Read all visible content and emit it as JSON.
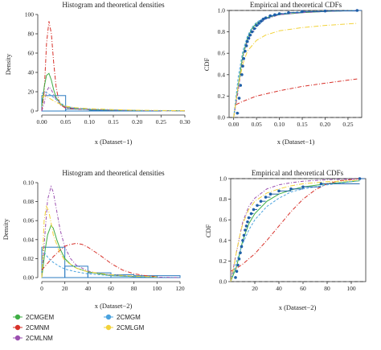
{
  "colors": {
    "2CMGEM": "#3fae45",
    "2CMNM": "#d7312a",
    "2CMLNM": "#9b4fb0",
    "2CMGM": "#4aa3df",
    "2CMLGM": "#f2d23a",
    "histogram": "#2b7bc0",
    "empirical": "#1f5fa8",
    "ref": "#222222"
  },
  "legend": {
    "placement": "bottom-left",
    "items": [
      {
        "name": "2CMGEM",
        "color_key": "2CMGEM"
      },
      {
        "name": "2CMGM",
        "color_key": "2CMGM"
      },
      {
        "name": "2CMNM",
        "color_key": "2CMNM"
      },
      {
        "name": "2CMLGM",
        "color_key": "2CMLGM"
      },
      {
        "name": "2CMLNM",
        "color_key": "2CMLNM"
      }
    ]
  },
  "chart_data": [
    {
      "id": "hist1",
      "type": "histogram_density",
      "title": "Histogram and theoretical densities",
      "xlabel": "x (Dataset−1)",
      "ylabel": "Density",
      "xlim": [
        0,
        0.3
      ],
      "ylim": [
        0,
        100
      ],
      "xticks": [
        "0.00",
        "0.05",
        "0.10",
        "0.15",
        "0.20",
        "0.25",
        "0.30"
      ],
      "yticks": [
        "0",
        "20",
        "40",
        "60",
        "80",
        "100"
      ],
      "bins": [
        {
          "x0": 0.0,
          "x1": 0.05,
          "density": 16
        },
        {
          "x0": 0.05,
          "x1": 0.1,
          "density": 2
        },
        {
          "x0": 0.1,
          "x1": 0.15,
          "density": 0.8
        },
        {
          "x0": 0.15,
          "x1": 0.2,
          "density": 0.5
        },
        {
          "x0": 0.2,
          "x1": 0.25,
          "density": 0.4
        },
        {
          "x0": 0.25,
          "x1": 0.3,
          "density": 0
        }
      ],
      "series": [
        {
          "name": "2CMNM",
          "x": [
            0.0,
            0.005,
            0.01,
            0.015,
            0.02,
            0.025,
            0.03,
            0.035,
            0.04,
            0.05,
            0.07,
            0.1,
            0.15,
            0.2,
            0.3
          ],
          "y": [
            0,
            20,
            70,
            93,
            80,
            50,
            25,
            12,
            6,
            3,
            2,
            1.5,
            1,
            0.5,
            0.2
          ]
        },
        {
          "name": "2CMGEM",
          "x": [
            0.0,
            0.005,
            0.01,
            0.015,
            0.02,
            0.025,
            0.03,
            0.04,
            0.05,
            0.07,
            0.1,
            0.15,
            0.2,
            0.3
          ],
          "y": [
            5,
            25,
            37,
            39,
            32,
            22,
            14,
            7,
            4,
            2.5,
            1.5,
            1,
            0.5,
            0.2
          ]
        },
        {
          "name": "2CMLNM",
          "x": [
            0.0,
            0.005,
            0.01,
            0.015,
            0.02,
            0.03,
            0.04,
            0.05,
            0.07,
            0.1,
            0.15,
            0.2,
            0.3
          ],
          "y": [
            0,
            8,
            20,
            25,
            22,
            12,
            6,
            4,
            2.5,
            1.5,
            1,
            0.5,
            0.2
          ]
        },
        {
          "name": "2CMGM",
          "x": [
            0.0,
            0.005,
            0.01,
            0.02,
            0.03,
            0.04,
            0.05,
            0.07,
            0.1,
            0.15,
            0.2,
            0.3
          ],
          "y": [
            18,
            20,
            19,
            16,
            12,
            8,
            5,
            3,
            2,
            1.2,
            0.6,
            0.2
          ]
        },
        {
          "name": "2CMLGM",
          "x": [
            0.0,
            0.005,
            0.01,
            0.02,
            0.03,
            0.04,
            0.05,
            0.07,
            0.1,
            0.15,
            0.2,
            0.3
          ],
          "y": [
            14,
            16,
            15,
            12,
            9,
            7,
            5,
            3.5,
            2.5,
            1.5,
            0.8,
            0.3
          ]
        }
      ]
    },
    {
      "id": "cdf1",
      "type": "ecdf",
      "title": "Empirical and theoretical CDFs",
      "xlabel": "x (Dataset−1)",
      "ylabel": "CDF",
      "xlim": [
        -0.01,
        0.28
      ],
      "ylim": [
        0,
        1
      ],
      "xticks": [
        "0.00",
        "0.05",
        "0.10",
        "0.15",
        "0.20",
        "0.25"
      ],
      "yticks": [
        "0.0",
        "0.2",
        "0.4",
        "0.6",
        "0.8",
        "1.0"
      ],
      "ref_lines": [
        0,
        1
      ],
      "empirical": {
        "x": [
          0.008,
          0.012,
          0.015,
          0.018,
          0.02,
          0.022,
          0.025,
          0.028,
          0.03,
          0.033,
          0.036,
          0.04,
          0.045,
          0.05,
          0.055,
          0.06,
          0.065,
          0.07,
          0.08,
          0.09,
          0.1,
          0.12,
          0.15,
          0.2,
          0.27
        ],
        "y": [
          0.04,
          0.18,
          0.3,
          0.4,
          0.48,
          0.55,
          0.62,
          0.67,
          0.71,
          0.74,
          0.77,
          0.8,
          0.83,
          0.86,
          0.88,
          0.9,
          0.92,
          0.93,
          0.95,
          0.96,
          0.97,
          0.98,
          0.99,
          0.995,
          1.0
        ]
      },
      "series": [
        {
          "name": "2CMGEM",
          "x": [
            0.0,
            0.01,
            0.02,
            0.03,
            0.04,
            0.05,
            0.07,
            0.1,
            0.15,
            0.2,
            0.27
          ],
          "y": [
            0.0,
            0.3,
            0.58,
            0.74,
            0.83,
            0.88,
            0.93,
            0.96,
            0.98,
            0.99,
            1.0
          ]
        },
        {
          "name": "2CMNM",
          "x": [
            0.005,
            0.02,
            0.05,
            0.1,
            0.15,
            0.2,
            0.27
          ],
          "y": [
            0.12,
            0.15,
            0.2,
            0.25,
            0.29,
            0.32,
            0.36
          ]
        },
        {
          "name": "2CMLNM",
          "x": [
            0.0,
            0.01,
            0.02,
            0.03,
            0.05,
            0.07,
            0.1,
            0.15,
            0.2,
            0.27
          ],
          "y": [
            0.0,
            0.25,
            0.55,
            0.72,
            0.86,
            0.92,
            0.96,
            0.98,
            0.99,
            1.0
          ]
        },
        {
          "name": "2CMGM",
          "x": [
            0.0,
            0.01,
            0.02,
            0.03,
            0.04,
            0.05,
            0.07,
            0.1,
            0.15,
            0.2,
            0.27
          ],
          "y": [
            0.0,
            0.38,
            0.62,
            0.76,
            0.84,
            0.89,
            0.94,
            0.97,
            0.99,
            0.995,
            1.0
          ]
        },
        {
          "name": "2CMLGM",
          "x": [
            0.0,
            0.01,
            0.02,
            0.03,
            0.05,
            0.07,
            0.1,
            0.15,
            0.2,
            0.27
          ],
          "y": [
            0.0,
            0.3,
            0.5,
            0.62,
            0.72,
            0.77,
            0.81,
            0.84,
            0.86,
            0.88
          ]
        }
      ]
    },
    {
      "id": "hist2",
      "type": "histogram_density",
      "title": "Histogram and theoretical densities",
      "xlabel": "x (Dataset−2)",
      "ylabel": "Density",
      "xlim": [
        0,
        120
      ],
      "ylim": [
        0,
        0.1
      ],
      "xticks": [
        "0",
        "20",
        "40",
        "60",
        "80",
        "100",
        "120"
      ],
      "yticks": [
        "0.00",
        "0.02",
        "0.04",
        "0.06",
        "0.08",
        "0.10"
      ],
      "bins": [
        {
          "x0": 0,
          "x1": 20,
          "density": 0.032
        },
        {
          "x0": 20,
          "x1": 40,
          "density": 0.012
        },
        {
          "x0": 40,
          "x1": 60,
          "density": 0.005
        },
        {
          "x0": 60,
          "x1": 80,
          "density": 0.003
        },
        {
          "x0": 80,
          "x1": 100,
          "density": 0.002
        },
        {
          "x0": 100,
          "x1": 120,
          "density": 0.002
        }
      ],
      "series": [
        {
          "name": "2CMLNM",
          "x": [
            0,
            3,
            5,
            8,
            10,
            13,
            16,
            20,
            25,
            30,
            40,
            50,
            60,
            80,
            100,
            120
          ],
          "y": [
            0.0,
            0.05,
            0.082,
            0.096,
            0.09,
            0.07,
            0.05,
            0.032,
            0.02,
            0.013,
            0.007,
            0.004,
            0.003,
            0.001,
            0.0005,
            0.0
          ]
        },
        {
          "name": "2CMGEM",
          "x": [
            0,
            3,
            5,
            8,
            10,
            13,
            16,
            20,
            25,
            30,
            40,
            50,
            60,
            80,
            100
          ],
          "y": [
            0.0,
            0.03,
            0.045,
            0.055,
            0.052,
            0.04,
            0.03,
            0.02,
            0.014,
            0.01,
            0.006,
            0.004,
            0.002,
            0.001,
            0.0005
          ]
        },
        {
          "name": "2CMNM",
          "x": [
            0,
            5,
            10,
            15,
            20,
            25,
            30,
            35,
            40,
            50,
            60,
            70,
            80,
            90,
            100
          ],
          "y": [
            0.008,
            0.015,
            0.022,
            0.028,
            0.033,
            0.035,
            0.036,
            0.035,
            0.032,
            0.024,
            0.015,
            0.008,
            0.004,
            0.002,
            0.001
          ]
        },
        {
          "name": "2CMGM",
          "x": [
            0,
            3,
            6,
            10,
            15,
            20,
            30,
            40,
            60,
            80,
            100
          ],
          "y": [
            0.03,
            0.025,
            0.02,
            0.016,
            0.012,
            0.009,
            0.006,
            0.004,
            0.002,
            0.001,
            0.0005
          ]
        },
        {
          "name": "2CMLGM",
          "x": [
            0,
            2,
            4,
            6,
            8,
            10,
            15,
            20,
            30,
            40,
            60,
            80,
            100
          ],
          "y": [
            0.0,
            0.06,
            0.075,
            0.07,
            0.058,
            0.045,
            0.028,
            0.018,
            0.01,
            0.006,
            0.003,
            0.0015,
            0.0008
          ]
        }
      ]
    },
    {
      "id": "cdf2",
      "type": "ecdf",
      "title": "Empirical and theoretical CDFs",
      "xlabel": "x (Dataset−2)",
      "ylabel": "CDF",
      "xlim": [
        0,
        112
      ],
      "ylim": [
        0,
        1
      ],
      "xticks": [
        "20",
        "40",
        "60",
        "80",
        "100"
      ],
      "yticks": [
        "0.0",
        "0.2",
        "0.4",
        "0.6",
        "0.8",
        "1.0"
      ],
      "ref_lines": [
        0,
        1
      ],
      "empirical": {
        "x": [
          4,
          5,
          6,
          7,
          8,
          9,
          10,
          11,
          12,
          13,
          14,
          15,
          17,
          19,
          22,
          25,
          29,
          33,
          40,
          50,
          60,
          75,
          107
        ],
        "y": [
          0.04,
          0.1,
          0.16,
          0.22,
          0.28,
          0.34,
          0.4,
          0.45,
          0.5,
          0.54,
          0.58,
          0.62,
          0.66,
          0.7,
          0.74,
          0.78,
          0.82,
          0.85,
          0.88,
          0.9,
          0.92,
          0.95,
          1.0
        ]
      },
      "series": [
        {
          "name": "2CMGEM",
          "x": [
            0,
            5,
            10,
            15,
            20,
            30,
            40,
            50,
            60,
            80,
            100,
            107
          ],
          "y": [
            0.0,
            0.15,
            0.4,
            0.56,
            0.66,
            0.78,
            0.85,
            0.89,
            0.92,
            0.95,
            0.97,
            0.98
          ]
        },
        {
          "name": "2CMNM",
          "x": [
            0,
            5,
            10,
            20,
            30,
            40,
            50,
            60,
            70,
            80,
            90,
            100,
            107
          ],
          "y": [
            0.1,
            0.13,
            0.17,
            0.27,
            0.4,
            0.54,
            0.68,
            0.8,
            0.89,
            0.95,
            0.98,
            0.99,
            1.0
          ]
        },
        {
          "name": "2CMLNM",
          "x": [
            0,
            5,
            10,
            15,
            20,
            30,
            40,
            50,
            60,
            80,
            100,
            107
          ],
          "y": [
            0.0,
            0.3,
            0.58,
            0.73,
            0.81,
            0.9,
            0.94,
            0.96,
            0.975,
            0.99,
            0.995,
            1.0
          ]
        },
        {
          "name": "2CMGM",
          "x": [
            0,
            5,
            10,
            15,
            20,
            30,
            40,
            50,
            60,
            80,
            100,
            107
          ],
          "y": [
            0.0,
            0.2,
            0.37,
            0.5,
            0.6,
            0.73,
            0.81,
            0.87,
            0.9,
            0.94,
            0.97,
            0.98
          ]
        },
        {
          "name": "2CMLGM",
          "x": [
            0,
            2,
            5,
            8,
            10,
            15,
            20,
            30,
            40,
            50,
            60,
            80,
            100,
            107
          ],
          "y": [
            0.0,
            0.1,
            0.3,
            0.47,
            0.56,
            0.7,
            0.78,
            0.86,
            0.9,
            0.93,
            0.95,
            0.97,
            0.98,
            0.985
          ]
        }
      ]
    }
  ]
}
